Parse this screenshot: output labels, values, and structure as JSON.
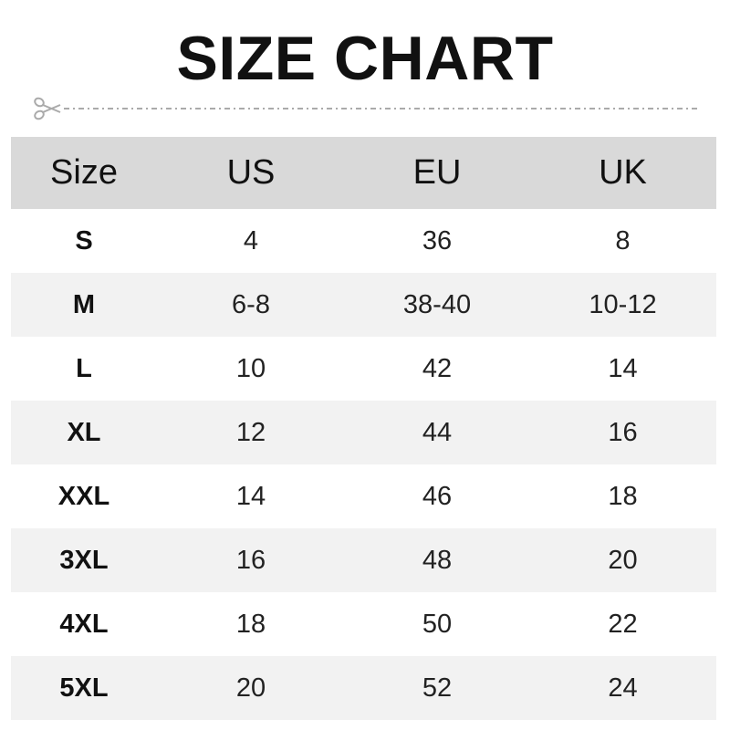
{
  "title": "SIZE CHART",
  "icons": {
    "cut_line": "scissors-icon"
  },
  "colors": {
    "header_bg": "#d9d9d9",
    "alt_row_bg": "#f2f2f2",
    "cut_line": "#aaaaaa"
  },
  "table": {
    "headers": [
      "Size",
      "US",
      "EU",
      "UK"
    ],
    "rows": [
      [
        "S",
        "4",
        "36",
        "8"
      ],
      [
        "M",
        "6-8",
        "38-40",
        "10-12"
      ],
      [
        "L",
        "10",
        "42",
        "14"
      ],
      [
        "XL",
        "12",
        "44",
        "16"
      ],
      [
        "XXL",
        "14",
        "46",
        "18"
      ],
      [
        "3XL",
        "16",
        "48",
        "20"
      ],
      [
        "4XL",
        "18",
        "50",
        "22"
      ],
      [
        "5XL",
        "20",
        "52",
        "24"
      ]
    ]
  }
}
